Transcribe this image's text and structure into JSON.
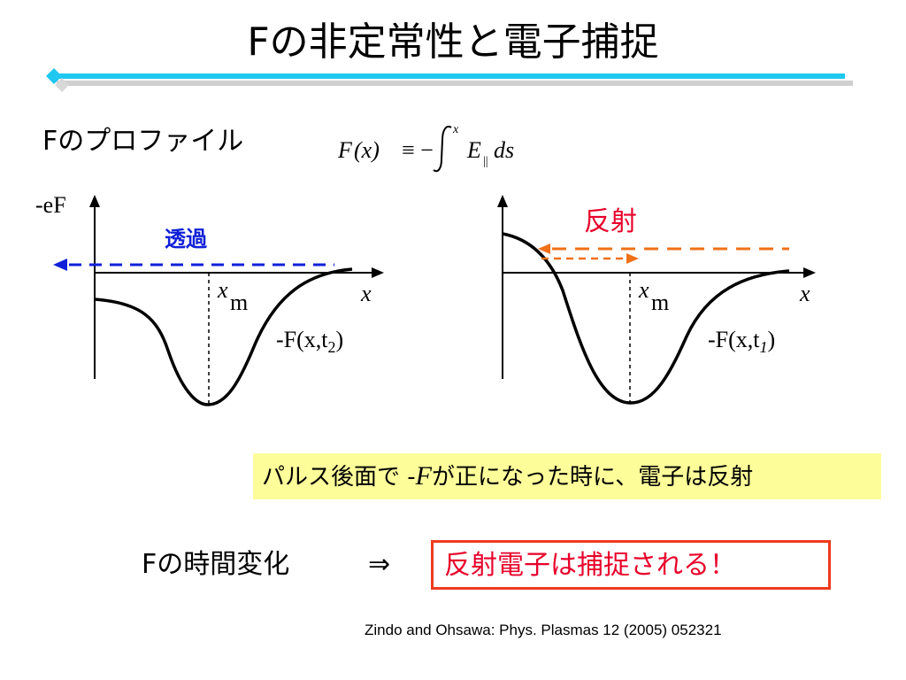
{
  "title": "Fの非定常性と電子捕捉",
  "profile_label": "Fのプロファイル",
  "formula": {
    "lhs": "F",
    "arg": "(x)",
    "op": "≡ −",
    "upper_limit": "x",
    "integrand": "E",
    "integrand_sub": "||",
    "differential": "ds"
  },
  "left_plot": {
    "y_axis_label": "-eF",
    "x_axis_label": "x",
    "xm_label": "x",
    "xm_sub": "m",
    "arrow_label": "透過",
    "curve_label": "-F(x,t",
    "curve_label_sub": "2",
    "curve_label_end": ")"
  },
  "right_plot": {
    "x_axis_label": "x",
    "xm_label": "x",
    "xm_sub": "m",
    "arrow_label": "反射",
    "curve_label": "-F(x,t",
    "curve_label_sub": "1",
    "curve_label_end": ")"
  },
  "note": {
    "before": "パルス後面で -",
    "f": "F",
    "after": "が正になった時に、電子は反射"
  },
  "time_label": "Fの時間変化",
  "arrow_symbol": "⇒",
  "conclusion": "反射電子は捕捉される！",
  "citation": "Zindo and Ohsawa: Phys. Plasmas 12 (2005) 052321",
  "colors": {
    "title_line": "#1ec8f0",
    "blue_arrow": "#1020d8",
    "orange_arrow": "#f07018",
    "conclusion_border": "#ee3b1f",
    "conclusion_text": "#e8002a",
    "note_bg": "#fdfd9a"
  }
}
